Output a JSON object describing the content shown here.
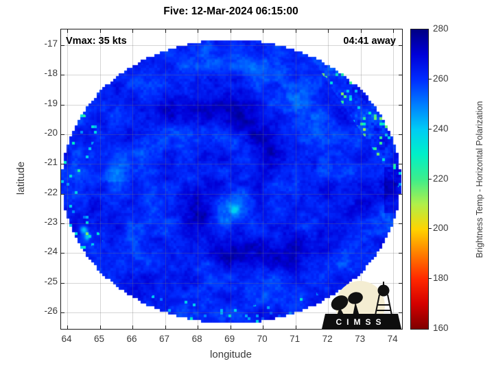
{
  "chart_data": {
    "type": "heatmap",
    "title": "Five: 12-Mar-2024 06:15:00",
    "xlabel": "longitude",
    "ylabel": "latitude",
    "xlim": [
      63.81,
      74.27
    ],
    "ylim": [
      -26.55,
      -16.47
    ],
    "xticks": [
      64,
      65,
      66,
      67,
      68,
      69,
      70,
      71,
      72,
      73,
      74
    ],
    "yticks": [
      -17,
      -18,
      -19,
      -20,
      -21,
      -22,
      -23,
      -24,
      -25,
      -26
    ],
    "grid": true,
    "annotations": [
      {
        "text": "Vmax: 35 kts",
        "position": "top-left"
      },
      {
        "text": "04:41 away",
        "position": "top-right"
      }
    ],
    "colorbar": {
      "label": "Brightness Temp - Horizontal Polarization",
      "min": 160,
      "max": 280,
      "ticks": [
        280,
        260,
        240,
        220,
        200,
        180,
        160
      ],
      "colormap": [
        {
          "t": 280,
          "color": "#000082"
        },
        {
          "t": 270,
          "color": "#0000d8"
        },
        {
          "t": 260,
          "color": "#002cff"
        },
        {
          "t": 250,
          "color": "#007dff"
        },
        {
          "t": 240,
          "color": "#00ccf5"
        },
        {
          "t": 230,
          "color": "#00f0c8"
        },
        {
          "t": 220,
          "color": "#3cee8c"
        },
        {
          "t": 210,
          "color": "#b0f04a"
        },
        {
          "t": 200,
          "color": "#ffd400"
        },
        {
          "t": 190,
          "color": "#ff7d00"
        },
        {
          "t": 180,
          "color": "#ff2800"
        },
        {
          "t": 170,
          "color": "#d40000"
        },
        {
          "t": 160,
          "color": "#7f0000"
        }
      ]
    },
    "field": {
      "description": "Microwave brightness-temperature swath of Tropical Cyclone Five: roughly circular swath centered near 69.0E / 21.6S, radius ~5 deg. Background blue 255-268 K, darker navy spiral warm bands 270-278 K, convective cold speckles 205-245 K (cyan/green/yellow) along the NE swath edge, SW rim and bottom rim; slightly darker patch on the far right edge near 21.8S.",
      "center_lon": 69.03,
      "center_lat": -21.59,
      "radius_lon": 5.2,
      "radius_lat": 4.78,
      "base_temp_k": 262
    },
    "logo_text": "CIMSS"
  }
}
